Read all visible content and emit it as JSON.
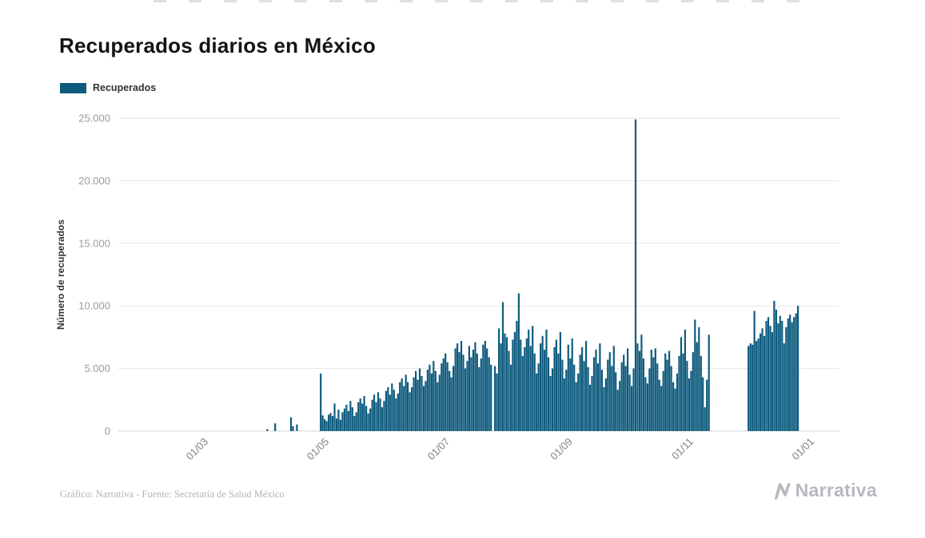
{
  "page": {
    "title": "Recuperados diarios en México",
    "footer_credit": "Gráfico: Narrativa - Fuente: Secretaría de Salud México",
    "brand": "Narrativa"
  },
  "legend": {
    "label": "Recuperados"
  },
  "colors": {
    "bar": "#0E5B7E",
    "grid": "#E6E6E6",
    "axis_line": "#D6D6D6",
    "ytick_text": "#9B9B9B",
    "xtick_text": "#808080",
    "brand_gray": "#B6BABF"
  },
  "chart_data": {
    "type": "bar",
    "title": "Recuperados diarios en México",
    "series_name": "Recuperados",
    "ylabel": "Número de recuperados",
    "xlabel": "",
    "ylim": [
      0,
      25000
    ],
    "yticks": [
      0,
      5000,
      10000,
      15000,
      20000,
      25000
    ],
    "ytick_labels": [
      "0",
      "5.000",
      "10.000",
      "15.000",
      "20.000",
      "25.000"
    ],
    "xtick_dates": [
      "2020-03-01",
      "2020-05-01",
      "2020-07-01",
      "2020-09-01",
      "2020-11-01",
      "2021-01-01"
    ],
    "xtick_labels": [
      "01/03",
      "01/05",
      "01/07",
      "01/09",
      "01/11",
      "01/01"
    ],
    "grid": true,
    "legend_position": "top-left",
    "x_start": "2020-03-01",
    "frequency": "daily",
    "values": [
      0,
      0,
      0,
      0,
      0,
      0,
      0,
      0,
      0,
      0,
      0,
      0,
      0,
      0,
      0,
      0,
      0,
      0,
      0,
      0,
      0,
      0,
      0,
      0,
      0,
      0,
      0,
      0,
      0,
      0,
      0,
      0,
      150,
      0,
      0,
      0,
      620,
      0,
      0,
      0,
      0,
      0,
      0,
      0,
      1100,
      380,
      0,
      520,
      0,
      0,
      0,
      0,
      0,
      0,
      0,
      0,
      0,
      0,
      0,
      4600,
      1250,
      950,
      800,
      1300,
      1450,
      1200,
      2200,
      1000,
      1700,
      900,
      1500,
      1800,
      2100,
      1600,
      2400,
      1900,
      1200,
      1500,
      2300,
      2600,
      2200,
      2800,
      2000,
      1400,
      1800,
      2500,
      2900,
      2300,
      3100,
      2600,
      1900,
      2400,
      3200,
      3500,
      2900,
      3800,
      3300,
      2600,
      3000,
      3900,
      4200,
      3600,
      4500,
      3900,
      3100,
      3500,
      4300,
      4800,
      4100,
      5000,
      4400,
      3600,
      4000,
      4900,
      5300,
      4600,
      5600,
      4800,
      3900,
      4500,
      5400,
      5800,
      6200,
      5500,
      4800,
      4300,
      5200,
      6600,
      7000,
      6300,
      7200,
      6100,
      5000,
      5600,
      6800,
      5900,
      6500,
      7100,
      6200,
      5100,
      5800,
      6900,
      7200,
      6600,
      5900,
      5300,
      0,
      5200,
      4600,
      8200,
      7000,
      10300,
      7800,
      7500,
      6400,
      5300,
      7300,
      7900,
      8800,
      11000,
      7300,
      6000,
      6700,
      7400,
      8100,
      6800,
      8400,
      6200,
      4600,
      5400,
      7000,
      7600,
      6500,
      8100,
      5900,
      4400,
      5000,
      6700,
      7300,
      6200,
      7900,
      5700,
      4200,
      4900,
      6900,
      5800,
      7400,
      5300,
      3900,
      4600,
      6100,
      6700,
      5600,
      7200,
      5100,
      3700,
      4400,
      5900,
      6500,
      5400,
      7000,
      4900,
      3500,
      4200,
      5700,
      6300,
      5200,
      6800,
      4700,
      3300,
      4000,
      5500,
      6100,
      5200,
      6600,
      4500,
      3600,
      5000,
      24900,
      7000,
      6400,
      7700,
      5800,
      4300,
      3800,
      5000,
      6500,
      5900,
      6600,
      5400,
      4100,
      3600,
      4800,
      6200,
      5700,
      6400,
      5200,
      3900,
      3400,
      4600,
      6000,
      7500,
      6200,
      8100,
      5600,
      4200,
      4800,
      6300,
      8900,
      7100,
      8300,
      6000,
      4300,
      1900,
      4100,
      7700,
      null,
      null,
      null,
      null,
      null,
      null,
      null,
      null,
      null,
      null,
      null,
      null,
      null,
      null,
      null,
      null,
      null,
      null,
      null,
      6800,
      7000,
      6900,
      9600,
      7200,
      7400,
      7800,
      8200,
      7600,
      8800,
      9100,
      8400,
      7900,
      10400,
      9700,
      8600,
      9200,
      8800,
      7000,
      8300,
      9000,
      9300,
      8700,
      9100,
      9400,
      10000
    ]
  }
}
